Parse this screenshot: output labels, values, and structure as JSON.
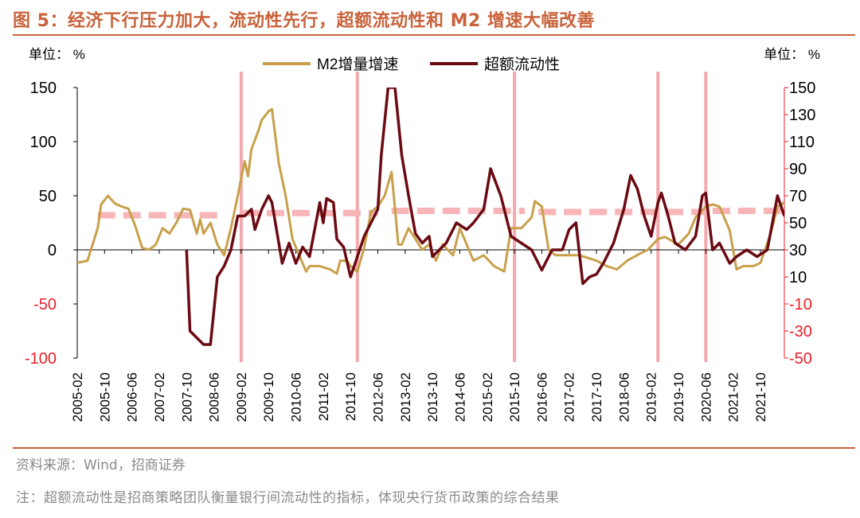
{
  "figure": {
    "title": "图 5：经济下行压力加大，流动性先行，超额流动性和 M2 增速大幅改善",
    "source": "资料来源：Wind，招商证券",
    "note": "注：超额流动性是招商策略团队衡量银行间流动性的指标，体现央行货币政策的综合结果"
  },
  "colors": {
    "m2": "#c8a04c",
    "excess": "#6b0a12",
    "vlines": "#f4a9ac",
    "dashes": "#f7b5b7",
    "right_axis": "#e8202a",
    "title": "#c8633b"
  },
  "chart_data": {
    "type": "line",
    "left_unit": "单位：%",
    "right_unit": "单位：%",
    "left_ylim": [
      -100,
      150
    ],
    "left_ticks": [
      -100,
      -50,
      0,
      50,
      100,
      150
    ],
    "right_ylim": [
      -50,
      150
    ],
    "right_ticks": [
      -50,
      -30,
      -10,
      10,
      30,
      50,
      70,
      90,
      110,
      130,
      150
    ],
    "xlim": [
      "2005-02",
      "2022-05"
    ],
    "x_ticks": [
      "2005-02",
      "2005-10",
      "2006-06",
      "2007-02",
      "2007-10",
      "2008-06",
      "2009-02",
      "2009-10",
      "2010-06",
      "2011-02",
      "2011-10",
      "2012-06",
      "2013-02",
      "2013-10",
      "2014-06",
      "2015-02",
      "2015-10",
      "2016-06",
      "2017-02",
      "2017-10",
      "2018-06",
      "2019-02",
      "2019-10",
      "2020-06",
      "2021-02",
      "2021-10"
    ],
    "legend_position": "top-center",
    "grid": false,
    "series": [
      {
        "name": "M2增量增速",
        "axis": "left",
        "points": [
          [
            "2005-02",
            -12
          ],
          [
            "2005-05",
            -10
          ],
          [
            "2005-08",
            20
          ],
          [
            "2005-09",
            42
          ],
          [
            "2005-11",
            50
          ],
          [
            "2006-01",
            43
          ],
          [
            "2006-03",
            40
          ],
          [
            "2006-05",
            38
          ],
          [
            "2006-07",
            22
          ],
          [
            "2006-09",
            2
          ],
          [
            "2006-11",
            0
          ],
          [
            "2007-01",
            5
          ],
          [
            "2007-03",
            20
          ],
          [
            "2007-05",
            15
          ],
          [
            "2007-07",
            25
          ],
          [
            "2007-09",
            38
          ],
          [
            "2007-11",
            37
          ],
          [
            "2008-01",
            15
          ],
          [
            "2008-02",
            28
          ],
          [
            "2008-03",
            15
          ],
          [
            "2008-05",
            25
          ],
          [
            "2008-07",
            5
          ],
          [
            "2008-09",
            -5
          ],
          [
            "2008-11",
            20
          ],
          [
            "2009-01",
            50
          ],
          [
            "2009-03",
            82
          ],
          [
            "2009-04",
            68
          ],
          [
            "2009-05",
            93
          ],
          [
            "2009-07",
            110
          ],
          [
            "2009-08",
            120
          ],
          [
            "2009-10",
            128
          ],
          [
            "2009-11",
            130
          ],
          [
            "2010-01",
            80
          ],
          [
            "2010-03",
            50
          ],
          [
            "2010-05",
            10
          ],
          [
            "2010-07",
            -5
          ],
          [
            "2010-09",
            -20
          ],
          [
            "2010-10",
            -15
          ],
          [
            "2011-01",
            -15
          ],
          [
            "2011-04",
            -18
          ],
          [
            "2011-06",
            -22
          ],
          [
            "2011-07",
            -10
          ],
          [
            "2011-09",
            -10
          ],
          [
            "2011-10",
            -15
          ],
          [
            "2011-12",
            -20
          ],
          [
            "2012-02",
            2
          ],
          [
            "2012-04",
            35
          ],
          [
            "2012-06",
            40
          ],
          [
            "2012-08",
            50
          ],
          [
            "2012-10",
            72
          ],
          [
            "2012-12",
            5
          ],
          [
            "2013-01",
            5
          ],
          [
            "2013-03",
            20
          ],
          [
            "2013-05",
            10
          ],
          [
            "2013-07",
            0
          ],
          [
            "2013-09",
            5
          ],
          [
            "2013-11",
            -10
          ],
          [
            "2014-01",
            5
          ],
          [
            "2014-04",
            -5
          ],
          [
            "2014-06",
            20
          ],
          [
            "2014-08",
            5
          ],
          [
            "2014-10",
            -10
          ],
          [
            "2015-01",
            -5
          ],
          [
            "2015-04",
            -15
          ],
          [
            "2015-07",
            -20
          ],
          [
            "2015-09",
            20
          ],
          [
            "2015-12",
            20
          ],
          [
            "2016-03",
            30
          ],
          [
            "2016-04",
            45
          ],
          [
            "2016-06",
            40
          ],
          [
            "2016-08",
            0
          ],
          [
            "2016-10",
            -5
          ],
          [
            "2017-01",
            -5
          ],
          [
            "2017-05",
            -5
          ],
          [
            "2017-10",
            -10
          ],
          [
            "2018-01",
            -15
          ],
          [
            "2018-04",
            -18
          ],
          [
            "2018-07",
            -10
          ],
          [
            "2018-11",
            -3
          ],
          [
            "2019-01",
            0
          ],
          [
            "2019-04",
            10
          ],
          [
            "2019-06",
            12
          ],
          [
            "2019-10",
            5
          ],
          [
            "2020-01",
            15
          ],
          [
            "2020-03",
            30
          ],
          [
            "2020-06",
            40
          ],
          [
            "2020-08",
            42
          ],
          [
            "2020-10",
            40
          ],
          [
            "2021-01",
            18
          ],
          [
            "2021-03",
            -18
          ],
          [
            "2021-05",
            -15
          ],
          [
            "2021-08",
            -15
          ],
          [
            "2021-10",
            -12
          ],
          [
            "2022-01",
            15
          ],
          [
            "2022-03",
            40
          ],
          [
            "2022-05",
            44
          ]
        ]
      },
      {
        "name": "超额流动性",
        "axis": "right",
        "points": [
          [
            "2007-10",
            30
          ],
          [
            "2007-11",
            -30
          ],
          [
            "2008-03",
            -40
          ],
          [
            "2008-05",
            -40
          ],
          [
            "2008-07",
            10
          ],
          [
            "2008-09",
            18
          ],
          [
            "2008-11",
            30
          ],
          [
            "2009-01",
            55
          ],
          [
            "2009-03",
            55
          ],
          [
            "2009-05",
            60
          ],
          [
            "2009-06",
            45
          ],
          [
            "2009-08",
            60
          ],
          [
            "2009-10",
            70
          ],
          [
            "2009-11",
            65
          ],
          [
            "2010-02",
            20
          ],
          [
            "2010-04",
            35
          ],
          [
            "2010-06",
            20
          ],
          [
            "2010-08",
            32
          ],
          [
            "2010-10",
            25
          ],
          [
            "2011-01",
            65
          ],
          [
            "2011-02",
            50
          ],
          [
            "2011-03",
            68
          ],
          [
            "2011-05",
            65
          ],
          [
            "2011-06",
            38
          ],
          [
            "2011-08",
            32
          ],
          [
            "2011-10",
            10
          ],
          [
            "2011-12",
            25
          ],
          [
            "2012-02",
            40
          ],
          [
            "2012-04",
            50
          ],
          [
            "2012-06",
            60
          ],
          [
            "2012-07",
            100
          ],
          [
            "2012-09",
            150
          ],
          [
            "2012-11",
            150
          ],
          [
            "2013-01",
            100
          ],
          [
            "2013-03",
            70
          ],
          [
            "2013-05",
            42
          ],
          [
            "2013-07",
            35
          ],
          [
            "2013-09",
            40
          ],
          [
            "2013-10",
            25
          ],
          [
            "2013-12",
            30
          ],
          [
            "2014-02",
            35
          ],
          [
            "2014-05",
            50
          ],
          [
            "2014-08",
            45
          ],
          [
            "2014-10",
            50
          ],
          [
            "2015-01",
            60
          ],
          [
            "2015-03",
            90
          ],
          [
            "2015-06",
            70
          ],
          [
            "2015-09",
            40
          ],
          [
            "2015-12",
            35
          ],
          [
            "2016-03",
            30
          ],
          [
            "2016-06",
            15
          ],
          [
            "2016-09",
            30
          ],
          [
            "2016-12",
            30
          ],
          [
            "2017-02",
            45
          ],
          [
            "2017-04",
            50
          ],
          [
            "2017-06",
            5
          ],
          [
            "2017-08",
            10
          ],
          [
            "2017-10",
            12
          ],
          [
            "2017-12",
            20
          ],
          [
            "2018-03",
            35
          ],
          [
            "2018-06",
            60
          ],
          [
            "2018-08",
            85
          ],
          [
            "2018-10",
            75
          ],
          [
            "2018-12",
            55
          ],
          [
            "2019-02",
            40
          ],
          [
            "2019-04",
            65
          ],
          [
            "2019-05",
            72
          ],
          [
            "2019-07",
            55
          ],
          [
            "2019-09",
            35
          ],
          [
            "2019-12",
            30
          ],
          [
            "2020-03",
            40
          ],
          [
            "2020-05",
            70
          ],
          [
            "2020-06",
            72
          ],
          [
            "2020-08",
            30
          ],
          [
            "2020-10",
            35
          ],
          [
            "2021-01",
            20
          ],
          [
            "2021-03",
            25
          ],
          [
            "2021-06",
            30
          ],
          [
            "2021-09",
            25
          ],
          [
            "2021-12",
            30
          ],
          [
            "2022-03",
            70
          ],
          [
            "2022-05",
            55
          ]
        ]
      }
    ],
    "vertical_markers": [
      "2009-02",
      "2011-12",
      "2015-10",
      "2019-04",
      "2020-06"
    ],
    "dash_levels_left": [
      {
        "from": "2005-08",
        "to": "2008-09",
        "value": 32
      },
      {
        "from": "2009-02",
        "to": "2012-06",
        "value": 34
      },
      {
        "from": "2012-10",
        "to": "2016-01",
        "value": 36
      },
      {
        "from": "2016-05",
        "to": "2020-08",
        "value": 35
      },
      {
        "from": "2020-08",
        "to": "2022-05",
        "value": 36
      }
    ]
  }
}
